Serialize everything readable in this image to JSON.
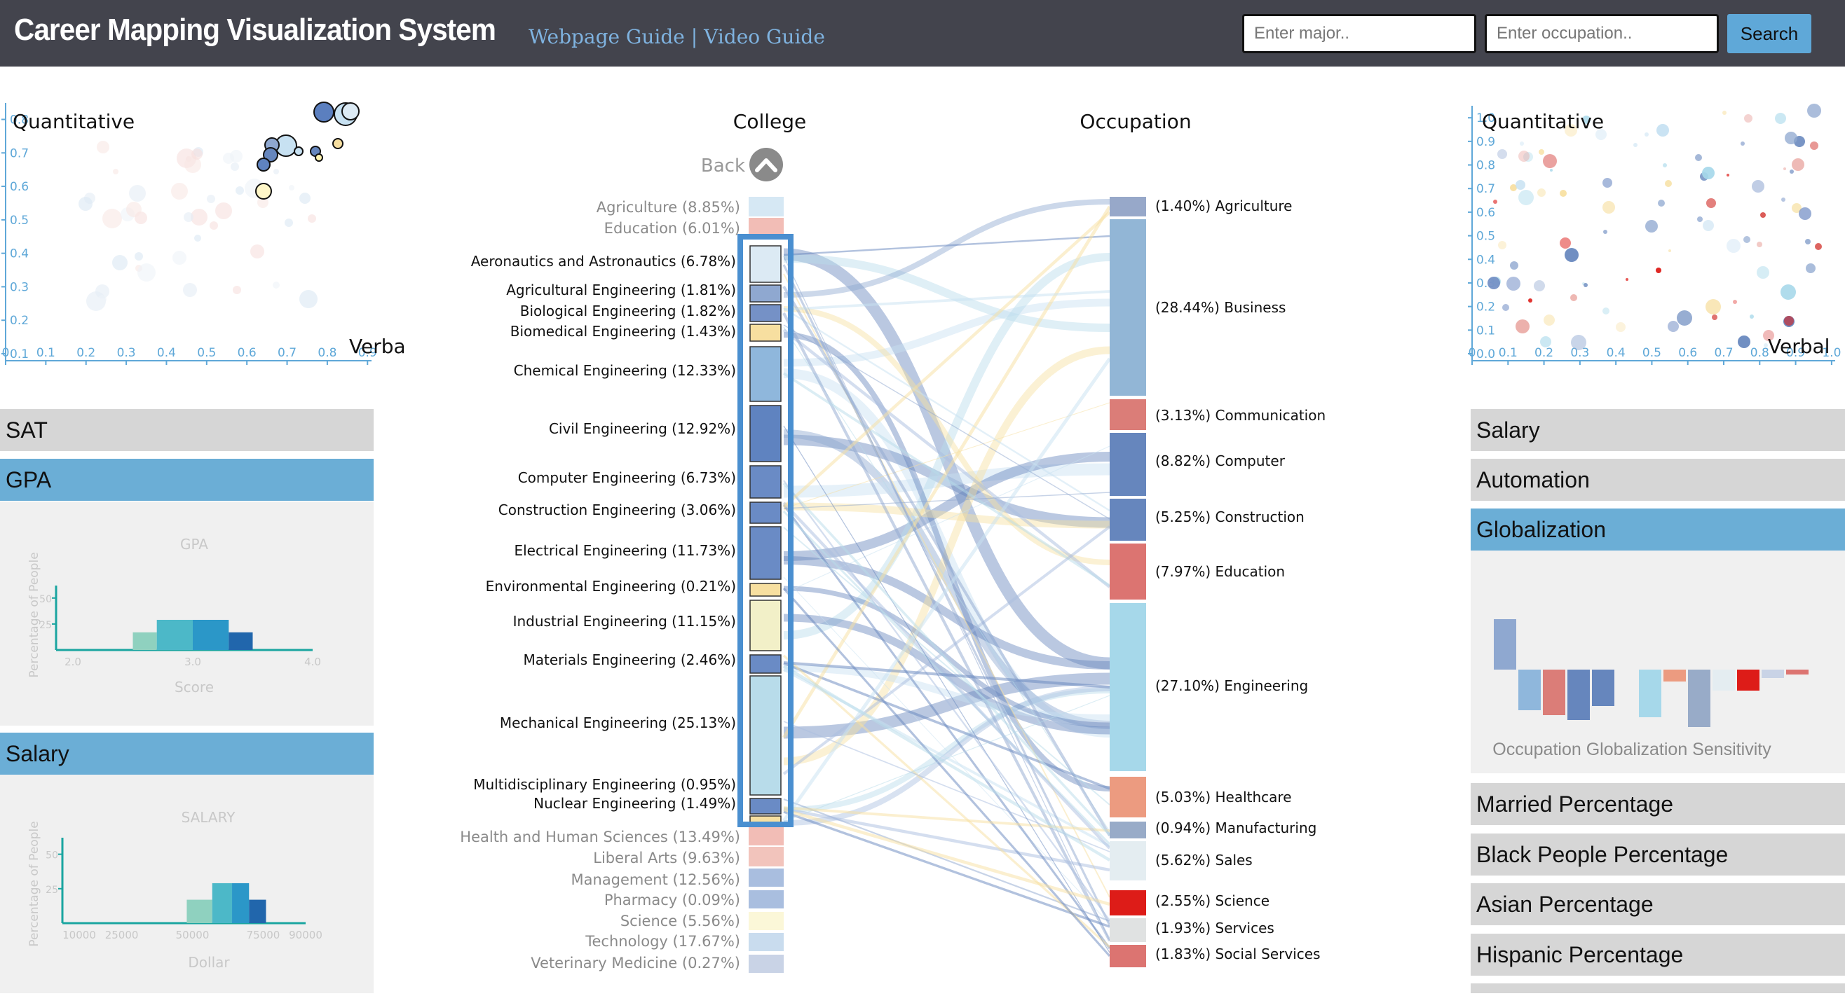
{
  "header": {
    "title": "Career Mapping Visualization System",
    "webpage_guide": "Webpage Guide",
    "separator": "|",
    "video_guide": "Video Guide",
    "major_placeholder": "Enter major..",
    "occupation_placeholder": "Enter occupation..",
    "search_label": "Search"
  },
  "left_scatter": {
    "ylabel": "Quantitative",
    "xlabel": "Verbal",
    "xticks": [
      "0",
      "0.1",
      "0.2",
      "0.3",
      "0.4",
      "0.5",
      "0.6",
      "0.7",
      "0.8",
      "0.9"
    ],
    "yticks": [
      "0.1",
      "0.2",
      "0.3",
      "0.4",
      "0.5",
      "0.6",
      "0.7",
      "0.8"
    ]
  },
  "right_scatter": {
    "ylabel": "Quantitative",
    "xlabel": "Verbal",
    "xticks": [
      "0",
      "0.1",
      "0.2",
      "0.3",
      "0.4",
      "0.5",
      "0.6",
      "0.7",
      "0.8",
      "0.9",
      "1.0"
    ],
    "yticks": [
      "0.0",
      "0.1",
      "0.2",
      "0.3",
      "0.4",
      "0.5",
      "0.6",
      "0.7",
      "0.8",
      "0.9",
      "1.0"
    ]
  },
  "left_panel": {
    "sat": "SAT",
    "gpa": "GPA",
    "salary": "Salary"
  },
  "gpa_chart": {
    "title": "GPA",
    "ylabel": "Percentage of People",
    "xlabel": "Score",
    "yticks": [
      "25",
      "50"
    ],
    "xticks": [
      "2.0",
      "3.0",
      "4.0"
    ],
    "bins": [
      {
        "from": 2.5,
        "to": 2.7,
        "value": 17,
        "color": "#8fd1bf"
      },
      {
        "from": 2.7,
        "to": 3.0,
        "value": 29,
        "color": "#4cb8c8"
      },
      {
        "from": 3.0,
        "to": 3.3,
        "value": 29,
        "color": "#2b97c8"
      },
      {
        "from": 3.3,
        "to": 3.5,
        "value": 17,
        "color": "#2166ac"
      }
    ]
  },
  "salary_chart": {
    "title": "SALARY",
    "ylabel": "Percentage of People",
    "xlabel": "Dollar",
    "yticks": [
      "25",
      "50"
    ],
    "xticks": [
      "10000",
      "25000",
      "50000",
      "75000",
      "90000"
    ],
    "bins": [
      {
        "from": 48000,
        "to": 57000,
        "value": 17,
        "color": "#8fd1bf"
      },
      {
        "from": 57000,
        "to": 64000,
        "value": 29,
        "color": "#4cb8c8"
      },
      {
        "from": 64000,
        "to": 70000,
        "value": 29,
        "color": "#2b97c8"
      },
      {
        "from": 70000,
        "to": 76000,
        "value": 17,
        "color": "#2166ac"
      }
    ]
  },
  "sankey": {
    "college_title": "College",
    "occupation_title": "Occupation",
    "back_label": "Back",
    "colleges_top": [
      {
        "label": "Agriculture (8.85%)",
        "color": "#d6e8f4"
      },
      {
        "label": "Education (6.01%)",
        "color": "#f2bdb6"
      }
    ],
    "majors": [
      {
        "label": "Aeronautics and Astronautics (6.78%)",
        "color": "#dceaf4"
      },
      {
        "label": "Agricultural Engineering (1.81%)",
        "color": "#8fa8d0"
      },
      {
        "label": "Biological Engineering (1.82%)",
        "color": "#7591c6"
      },
      {
        "label": "Biomedical Engineering (1.43%)",
        "color": "#f7dfa0"
      },
      {
        "label": "Chemical Engineering (12.33%)",
        "color": "#8fb7dc"
      },
      {
        "label": "Civil Engineering (12.92%)",
        "color": "#5f83c0"
      },
      {
        "label": "Computer Engineering (6.73%)",
        "color": "#6a8bc5"
      },
      {
        "label": "Construction Engineering (3.06%)",
        "color": "#6a8bc5"
      },
      {
        "label": "Electrical Engineering (11.73%)",
        "color": "#6a8bc5"
      },
      {
        "label": "Environmental Engineering (0.21%)",
        "color": "#f7dfa0"
      },
      {
        "label": "Industrial Engineering (11.15%)",
        "color": "#f2f0c8"
      },
      {
        "label": "Materials Engineering (2.46%)",
        "color": "#6a8bc5"
      },
      {
        "label": "Mechanical Engineering (25.13%)",
        "color": "#b8dcea"
      },
      {
        "label": "Multidisciplinary Engineering (0.95%)",
        "color": "#6a8bc5"
      },
      {
        "label": "Nuclear Engineering (1.49%)",
        "color": "#f7dfa0"
      }
    ],
    "colleges_bottom": [
      {
        "label": "Health and Human Sciences (13.49%)",
        "color": "#f2bdb6"
      },
      {
        "label": "Liberal Arts (9.63%)",
        "color": "#f2c4bc"
      },
      {
        "label": "Management (12.56%)",
        "color": "#a9bedf"
      },
      {
        "label": "Pharmacy (0.09%)",
        "color": "#a9bedf"
      },
      {
        "label": "Science (5.56%)",
        "color": "#fbf7d8"
      },
      {
        "label": "Technology (17.67%)",
        "color": "#c9dcee"
      },
      {
        "label": "Veterinary Medicine (0.27%)",
        "color": "#c9d3e6"
      }
    ],
    "occupations": [
      {
        "label": "(1.40%) Agriculture",
        "color": "#97a8c9"
      },
      {
        "label": "(28.44%) Business",
        "color": "#92b6d6"
      },
      {
        "label": "(3.13%) Communication",
        "color": "#db7d78"
      },
      {
        "label": "(8.82%) Computer",
        "color": "#6686bd"
      },
      {
        "label": "(5.25%) Construction",
        "color": "#6686bd"
      },
      {
        "label": "(7.97%) Education",
        "color": "#dc7471"
      },
      {
        "label": "(27.10%) Engineering",
        "color": "#a6d8ea"
      },
      {
        "label": "(5.03%) Healthcare",
        "color": "#ec9b80"
      },
      {
        "label": "(0.94%) Manufacturing",
        "color": "#98abc8"
      },
      {
        "label": "(5.62%) Sales",
        "color": "#e4edf1"
      },
      {
        "label": "(2.55%) Science",
        "color": "#dd1c18"
      },
      {
        "label": "(1.93%) Services",
        "color": "#e0e2e2"
      },
      {
        "label": "(1.83%) Social Services",
        "color": "#dc7471"
      }
    ]
  },
  "right_panel": {
    "salary": "Salary",
    "automation": "Automation",
    "globalization": "Globalization",
    "globalization_chart_label": "Occupation Globalization Sensitivity",
    "married": "Married Percentage",
    "black": "Black People Percentage",
    "asian": "Asian Percentage",
    "hispanic": "Hispanic Percentage"
  },
  "globalization_chart": {
    "bars": [
      {
        "value": 0.72,
        "color": "#8fa8d0"
      },
      {
        "value": -0.58,
        "color": "#8fb7dc"
      },
      {
        "value": -0.65,
        "color": "#db7d78"
      },
      {
        "value": -0.72,
        "color": "#6686bd"
      },
      {
        "value": -0.52,
        "color": "#6686bd"
      },
      {
        "value": -0.68,
        "color": "#a6d8ea"
      },
      {
        "value": -0.17,
        "color": "#ec9b80"
      },
      {
        "value": -0.82,
        "color": "#98abc8"
      },
      {
        "value": -0.3,
        "color": "#e4edf1"
      },
      {
        "value": -0.3,
        "color": "#dd1c18"
      },
      {
        "value": -0.12,
        "color": "#c9d3e6"
      },
      {
        "value": -0.07,
        "color": "#dc7471"
      }
    ]
  },
  "colors": {
    "header": "#43444d",
    "accent": "#6baed6",
    "panel_gray": "#d6d6d6",
    "link": "#7fb3e0"
  }
}
